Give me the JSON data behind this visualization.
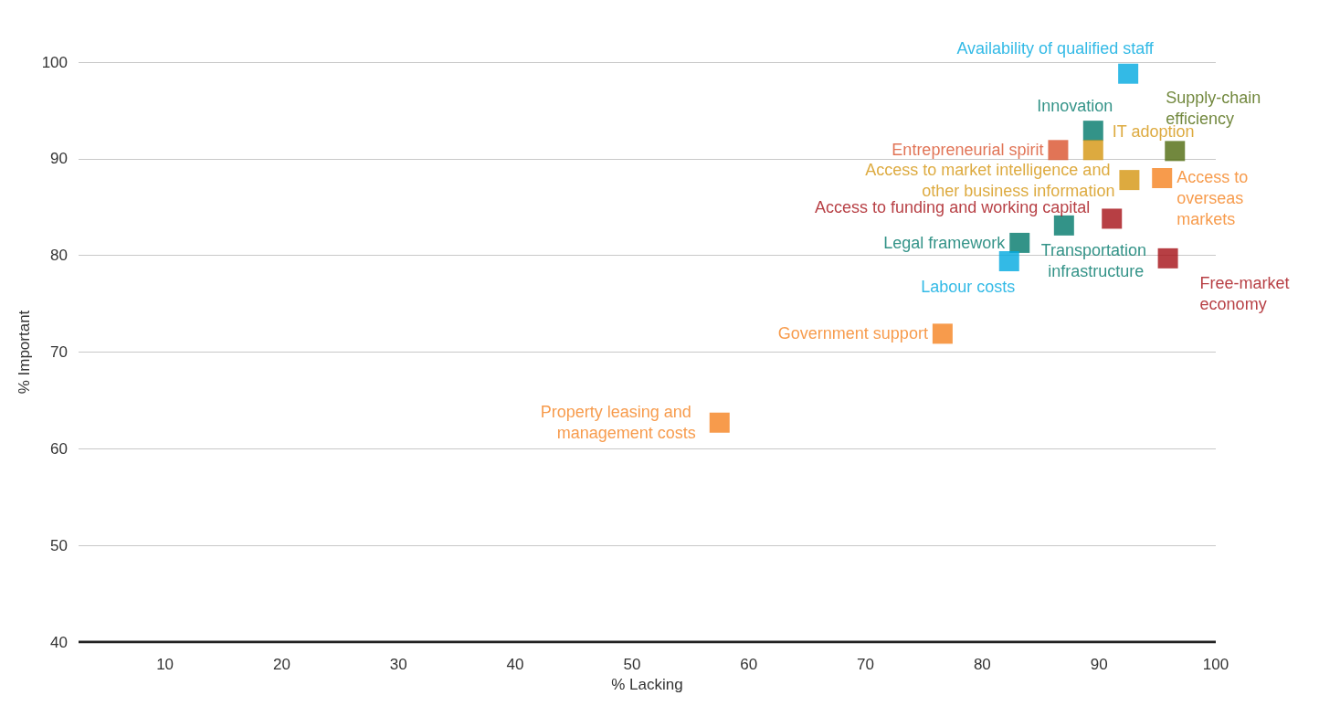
{
  "chart_data": {
    "type": "scatter",
    "xlabel": "% Lacking",
    "ylabel": "% Important",
    "xlim": [
      2.6,
      100
    ],
    "ylim": [
      40,
      100
    ],
    "xticks": [
      10,
      20,
      30,
      40,
      50,
      60,
      70,
      80,
      90,
      100
    ],
    "yticks": [
      40,
      50,
      60,
      70,
      80,
      90,
      100
    ],
    "grid": "y",
    "legend": false,
    "marker": "square",
    "series": [
      {
        "name": "Availability of qualified staff",
        "color": "#00a9e0",
        "x": [
          92.5
        ],
        "values": [
          98.8
        ]
      },
      {
        "name": "Supply-chain efficiency",
        "color": "#4f6a0e",
        "x": [
          96.5
        ],
        "values": [
          90.8
        ]
      },
      {
        "name": "Innovation",
        "color": "#00786a",
        "x": [
          89.5
        ],
        "values": [
          92.9
        ]
      },
      {
        "name": "Entrepreneurial spirit",
        "color": "#d9512c",
        "x": [
          86.5
        ],
        "values": [
          90.9
        ]
      },
      {
        "name": "IT adoption",
        "color": "#d4950f",
        "x": [
          89.5
        ],
        "values": [
          90.9
        ]
      },
      {
        "name": "Access to market intelligence and other business information",
        "color": "#d4950f",
        "x": [
          92.6
        ],
        "values": [
          87.8
        ]
      },
      {
        "name": "Access to overseas markets",
        "color": "#f5821f",
        "x": [
          95.4
        ],
        "values": [
          88.0
        ]
      },
      {
        "name": "Access to funding and working capital",
        "color": "#a50f15",
        "x": [
          91.1
        ],
        "values": [
          83.8
        ]
      },
      {
        "name": "Legal framework",
        "color": "#00786a",
        "x": [
          83.2
        ],
        "values": [
          81.3
        ]
      },
      {
        "name": "Transportation infrastructure",
        "color": "#00786a",
        "x": [
          87.0
        ],
        "values": [
          83.1
        ]
      },
      {
        "name": "Labour costs",
        "color": "#00a9e0",
        "x": [
          82.3
        ],
        "values": [
          79.4
        ]
      },
      {
        "name": "Free-market economy",
        "color": "#a50f15",
        "x": [
          95.9
        ],
        "values": [
          79.7
        ]
      },
      {
        "name": "Government support",
        "color": "#f5821f",
        "x": [
          76.6
        ],
        "values": [
          71.9
        ]
      },
      {
        "name": "Property leasing and management costs",
        "color": "#f5821f",
        "x": [
          57.5
        ],
        "values": [
          62.7
        ]
      }
    ]
  }
}
